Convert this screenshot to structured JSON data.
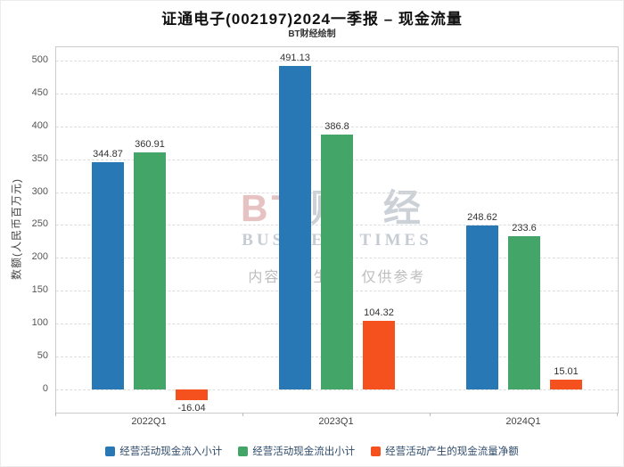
{
  "header": {
    "title": "证通电子(002197)2024一季报 – 现金流量",
    "subtitle": "BT财经绘制"
  },
  "watermark": {
    "logo": "BT",
    "logo_cn": "财 经",
    "line2": "BUSINESS TIMES",
    "line3": "内容由AI生成，仅供参考"
  },
  "chart_data": {
    "type": "bar",
    "title": "证通电子(002197)2024一季报 – 现金流量",
    "categories": [
      "2022Q1",
      "2023Q1",
      "2024Q1"
    ],
    "series": [
      {
        "name": "经营活动现金流入小计",
        "color": "#2878b5",
        "values": [
          344.87,
          491.13,
          248.62
        ]
      },
      {
        "name": "经营活动现金流出小计",
        "color": "#43a567",
        "values": [
          360.91,
          386.8,
          233.6
        ]
      },
      {
        "name": "经营活动产生的现金流量净额",
        "color": "#f4511e",
        "values": [
          -16.04,
          104.32,
          15.01
        ]
      }
    ],
    "xlabel": "",
    "ylabel": "数额(人民币百万元)",
    "ylim": [
      -35,
      520
    ],
    "yticks": [
      0,
      50,
      100,
      150,
      200,
      250,
      300,
      350,
      400,
      450,
      500
    ],
    "grid": true,
    "legend_position": "bottom"
  },
  "colors": {
    "axis_text": "#555555",
    "grid": "#dddddd",
    "plot_border": "#cccccc",
    "value_label": "#333333",
    "legend_text": "#2d4a6a"
  }
}
